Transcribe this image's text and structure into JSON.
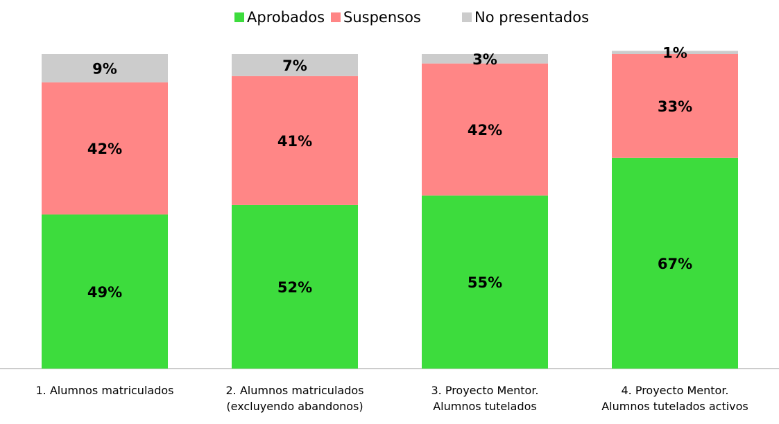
{
  "chart_data": {
    "type": "stacked_bar",
    "categories": [
      "1. Alumnos matriculados",
      "2. Alumnos matriculados\n(excluyendo abandonos)",
      "3. Proyecto Mentor.\nAlumnos tutelados",
      "4. Proyecto Mentor.\nAlumnos tutelados activos"
    ],
    "series": [
      {
        "name": "Aprobados",
        "color": "#3ddc3d",
        "values": [
          49,
          52,
          55,
          67
        ],
        "value_labels": [
          "49%",
          "52%",
          "55%",
          "67%"
        ]
      },
      {
        "name": "Suspensos",
        "color": "#ff8686",
        "values": [
          42,
          41,
          42,
          33
        ],
        "value_labels": [
          "42%",
          "41%",
          "42%",
          "33%"
        ]
      },
      {
        "name": "No presentados",
        "color": "#cccccc",
        "values": [
          9,
          7,
          3,
          1
        ],
        "value_labels": [
          "9%",
          "7%",
          "3%",
          "1%"
        ]
      }
    ],
    "legend": "top"
  }
}
